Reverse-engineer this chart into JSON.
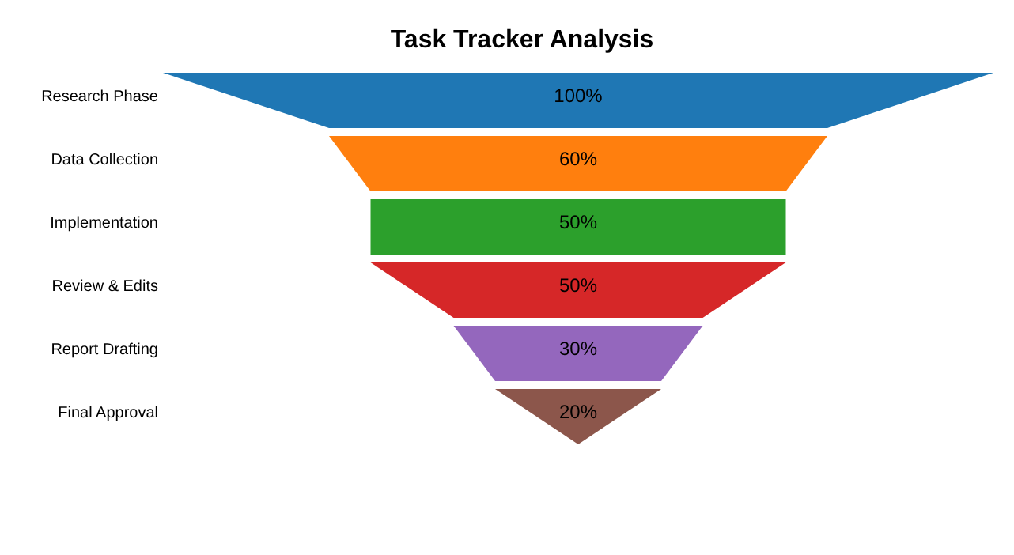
{
  "chart_data": {
    "type": "other",
    "title": "Task Tracker Analysis",
    "categories": [
      "Research Phase",
      "Data Collection",
      "Implementation",
      "Review & Edits",
      "Report Drafting",
      "Final Approval"
    ],
    "values": [
      100,
      60,
      50,
      50,
      30,
      20
    ],
    "colors": [
      "#1f77b4",
      "#ff7f0e",
      "#2ca02c",
      "#d62728",
      "#9467bd",
      "#8c564b"
    ],
    "value_labels": [
      "100%",
      "60%",
      "50%",
      "50%",
      "30%",
      "20%"
    ]
  }
}
